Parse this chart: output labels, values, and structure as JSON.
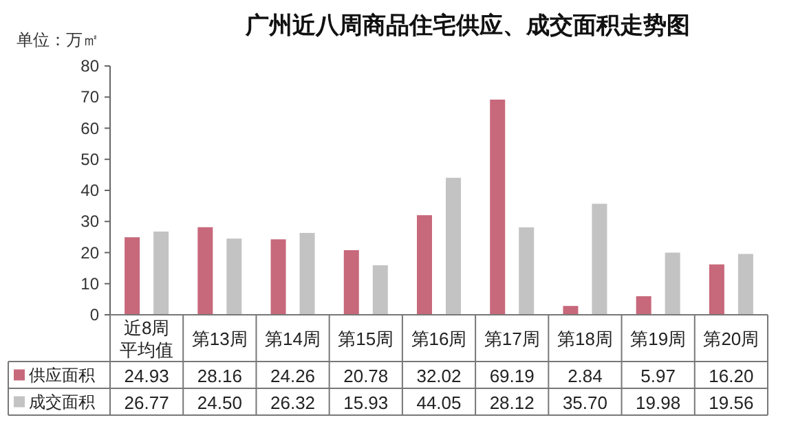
{
  "chart_data": {
    "type": "bar",
    "title": "广州近八周商品住宅供应、成交面积走势图",
    "ylabel": "单位：万㎡",
    "categories": [
      "近8周平均值",
      "第13周",
      "第14周",
      "第15周",
      "第16周",
      "第17周",
      "第18周",
      "第19周",
      "第20周"
    ],
    "series": [
      {
        "name": "供应面积",
        "color": "#c8687b",
        "values": [
          24.93,
          28.16,
          24.26,
          20.78,
          32.02,
          69.19,
          2.84,
          5.97,
          16.2
        ],
        "value_labels": [
          "24.93",
          "28.16",
          "24.26",
          "20.78",
          "32.02",
          "69.19",
          "2.84",
          "5.97",
          "16.20"
        ]
      },
      {
        "name": "成交面积",
        "color": "#c3c3c3",
        "values": [
          26.77,
          24.5,
          26.32,
          15.93,
          44.05,
          28.12,
          35.7,
          19.98,
          19.56
        ],
        "value_labels": [
          "26.77",
          "24.50",
          "26.32",
          "15.93",
          "44.05",
          "28.12",
          "35.70",
          "19.98",
          "19.56"
        ]
      }
    ],
    "ylim": [
      0,
      80
    ],
    "yticks": [
      0,
      10,
      20,
      30,
      40,
      50,
      60,
      70,
      80
    ],
    "legend": "bottom",
    "grid": false
  }
}
